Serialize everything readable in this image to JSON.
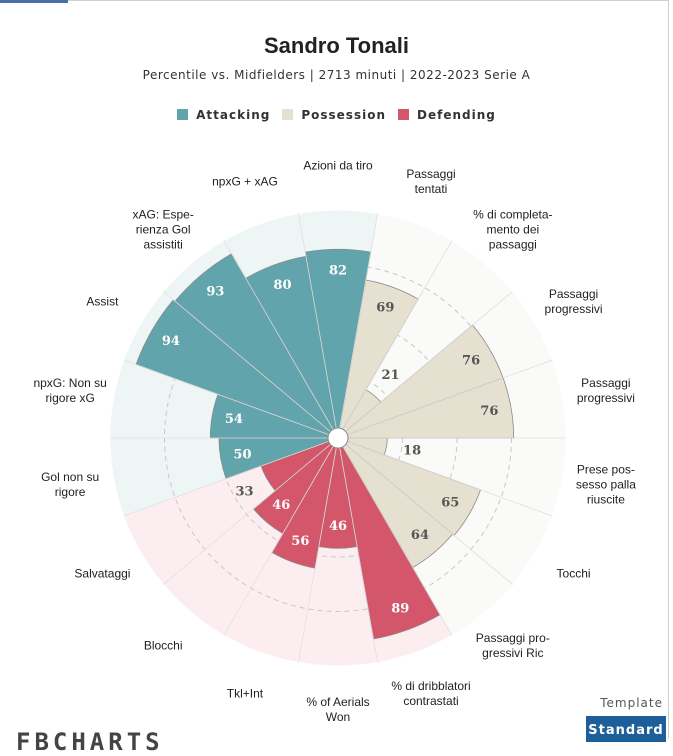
{
  "chart_data": {
    "type": "polar_bar",
    "title": "Sandro Tonali",
    "subtitle": "Percentile vs. Midfielders | 2713 minuti | 2022-2023 Serie A",
    "categories": [
      "Azioni da tiro",
      "Passaggi\ntentati",
      "% di completa-\nmento dei\npassaggi",
      "Passaggi\nprogressivi",
      "Passaggi\nprogressivi",
      "Prese pos-\nsesso palla\nriuscite",
      "Tocchi",
      "Passaggi pro-\ngressivi Ric",
      "% di dribblatori\ncontrastati",
      "% of Aerials\nWon",
      "Tkl+Int",
      "Blocchi",
      "Salvataggi",
      "Gol non su\nrigore",
      "npxG: Non su\nrigore xG",
      "Assist",
      "xAG: Espe-\nrienza Gol\nassistiti",
      "npxG + xAG"
    ],
    "series": [
      {
        "name": "Attacking",
        "color": "#62a4ab",
        "background": "#edf5f5",
        "values": [
          82,
          null,
          null,
          null,
          null,
          null,
          null,
          null,
          null,
          null,
          null,
          null,
          null,
          50,
          54,
          94,
          93,
          80
        ]
      },
      {
        "name": "Possession",
        "color": "#e6e0d0",
        "background": "#fafaf8",
        "values": [
          null,
          69,
          21,
          76,
          76,
          18,
          65,
          64,
          null,
          null,
          null,
          null,
          null,
          null,
          null,
          null,
          null,
          null
        ]
      },
      {
        "name": "Defending",
        "color": "#d4566b",
        "background": "#fcedf0",
        "values": [
          null,
          null,
          null,
          null,
          null,
          null,
          null,
          null,
          89,
          46,
          56,
          46,
          33,
          null,
          null,
          null,
          null,
          null
        ]
      }
    ],
    "ylim": [
      0,
      100
    ]
  },
  "ui": {
    "template_label": "Template",
    "button": "Standard",
    "logo": "FBCHARTS"
  }
}
